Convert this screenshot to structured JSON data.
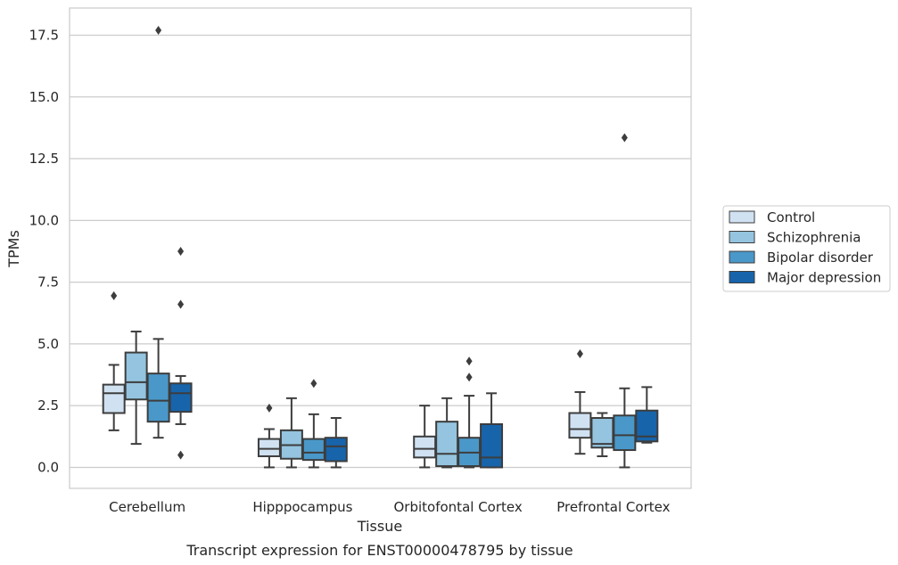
{
  "chart_data": {
    "type": "box",
    "caption": "Transcript expression for ENST00000478795 by tissue",
    "xlabel": "Tissue",
    "ylabel": "TPMs",
    "ylim": [
      -0.85,
      18.6
    ],
    "yticks": [
      0.0,
      2.5,
      5.0,
      7.5,
      10.0,
      12.5,
      15.0,
      17.5
    ],
    "ytick_labels": [
      "0.0",
      "2.5",
      "5.0",
      "7.5",
      "10.0",
      "12.5",
      "15.0",
      "17.5"
    ],
    "grid": "horizontal",
    "legend_position": "right",
    "categories": [
      "Cerebellum",
      "Hipppocampus",
      "Orbitofontal Cortex",
      "Prefrontal Cortex"
    ],
    "series": [
      {
        "name": "Control",
        "color": "#d0e1f2",
        "boxes": [
          {
            "whislo": 1.5,
            "q1": 2.2,
            "med": 3.0,
            "q3": 3.35,
            "whishi": 4.15,
            "fliers": [
              6.95
            ]
          },
          {
            "whislo": 0.0,
            "q1": 0.45,
            "med": 0.75,
            "q3": 1.15,
            "whishi": 1.55,
            "fliers": [
              2.4
            ]
          },
          {
            "whislo": 0.0,
            "q1": 0.4,
            "med": 0.75,
            "q3": 1.25,
            "whishi": 2.5,
            "fliers": []
          },
          {
            "whislo": 0.55,
            "q1": 1.2,
            "med": 1.55,
            "q3": 2.2,
            "whishi": 3.05,
            "fliers": [
              4.6
            ]
          }
        ]
      },
      {
        "name": "Schizophrenia",
        "color": "#94c4df",
        "boxes": [
          {
            "whislo": 0.95,
            "q1": 2.75,
            "med": 3.45,
            "q3": 4.65,
            "whishi": 5.5,
            "fliers": []
          },
          {
            "whislo": 0.0,
            "q1": 0.35,
            "med": 0.9,
            "q3": 1.5,
            "whishi": 2.8,
            "fliers": []
          },
          {
            "whislo": 0.0,
            "q1": 0.05,
            "med": 0.55,
            "q3": 1.85,
            "whishi": 2.8,
            "fliers": []
          },
          {
            "whislo": 0.45,
            "q1": 0.8,
            "med": 0.95,
            "q3": 2.0,
            "whishi": 2.2,
            "fliers": []
          }
        ]
      },
      {
        "name": "Bipolar disorder",
        "color": "#4a98c9",
        "boxes": [
          {
            "whislo": 1.2,
            "q1": 1.85,
            "med": 2.7,
            "q3": 3.8,
            "whishi": 5.2,
            "fliers": [
              17.7
            ]
          },
          {
            "whislo": 0.0,
            "q1": 0.3,
            "med": 0.6,
            "q3": 1.15,
            "whishi": 2.15,
            "fliers": [
              3.4
            ]
          },
          {
            "whislo": 0.0,
            "q1": 0.05,
            "med": 0.6,
            "q3": 1.2,
            "whishi": 2.9,
            "fliers": [
              3.65,
              4.3
            ]
          },
          {
            "whislo": 0.0,
            "q1": 0.7,
            "med": 1.3,
            "q3": 2.1,
            "whishi": 3.2,
            "fliers": [
              13.35
            ]
          }
        ]
      },
      {
        "name": "Major depression",
        "color": "#1764ab",
        "boxes": [
          {
            "whislo": 1.75,
            "q1": 2.25,
            "med": 3.0,
            "q3": 3.4,
            "whishi": 3.7,
            "fliers": [
              0.5,
              6.6,
              8.75
            ]
          },
          {
            "whislo": 0.0,
            "q1": 0.25,
            "med": 0.85,
            "q3": 1.2,
            "whishi": 2.0,
            "fliers": []
          },
          {
            "whislo": 0.0,
            "q1": 0.0,
            "med": 0.4,
            "q3": 1.75,
            "whishi": 3.0,
            "fliers": []
          },
          {
            "whislo": 1.0,
            "q1": 1.05,
            "med": 1.25,
            "q3": 2.3,
            "whishi": 3.25,
            "fliers": []
          }
        ]
      }
    ]
  }
}
